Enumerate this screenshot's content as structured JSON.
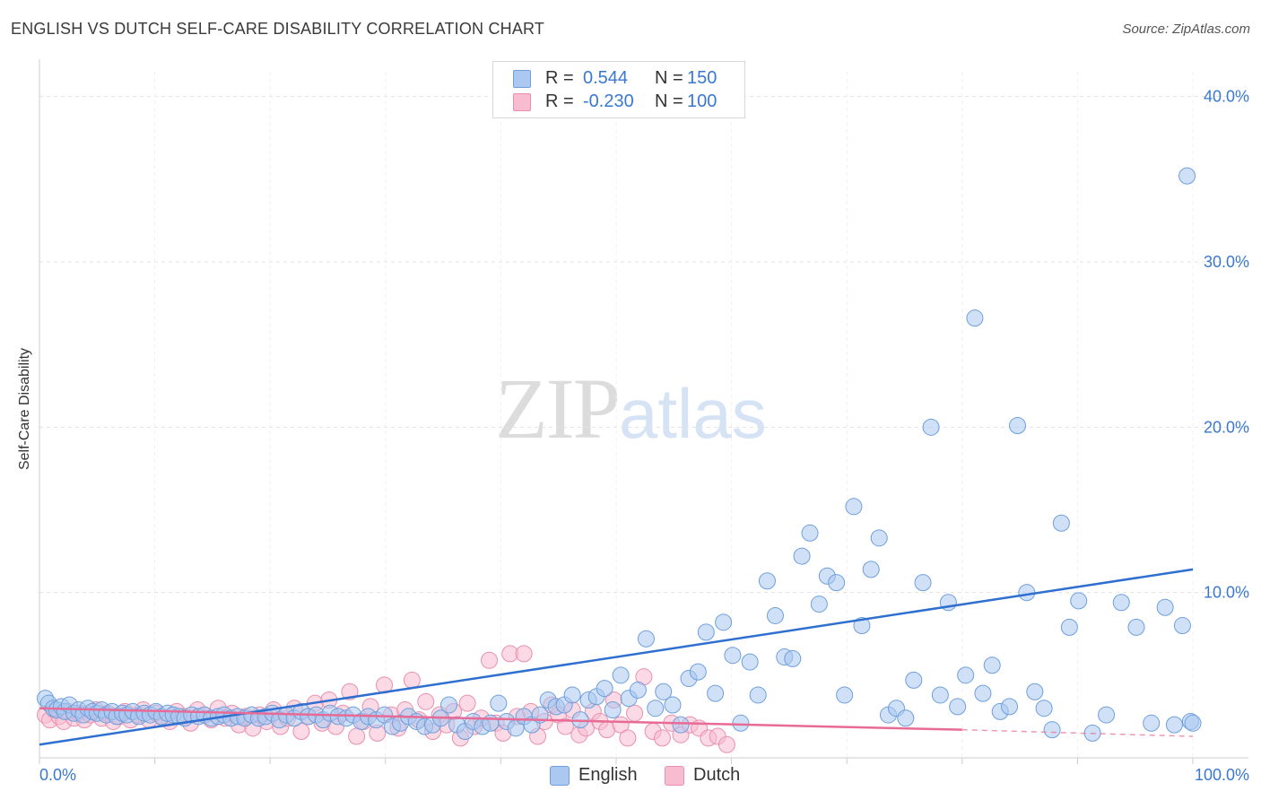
{
  "header": {
    "title": "ENGLISH VS DUTCH SELF-CARE DISABILITY CORRELATION CHART",
    "source": "Source: ZipAtlas.com"
  },
  "watermark": {
    "zip": "ZIP",
    "atlas": "atlas"
  },
  "legend": {
    "r_label": "R =",
    "n_label": "N =",
    "rows": [
      {
        "r": "0.544",
        "n": "150"
      },
      {
        "r": "-0.230",
        "n": "100"
      }
    ]
  },
  "bottom_legend": [
    "English",
    "Dutch"
  ],
  "colors": {
    "english_fill": "#aac8f0",
    "english_stroke": "#6f9fdc",
    "english_line": "#2f6fd0",
    "dutch_fill": "#f7bcd0",
    "dutch_stroke": "#ea8fad",
    "dutch_line": "#e86b95",
    "tick_label": "#3a78d0",
    "grid": "#e3e3e3"
  },
  "chart_data": {
    "type": "scatter",
    "title": "ENGLISH VS DUTCH SELF-CARE DISABILITY CORRELATION CHART",
    "xlabel": "",
    "ylabel": "Self-Care Disability",
    "xlim": [
      0,
      100
    ],
    "ylim": [
      0,
      41.5
    ],
    "x_tick_labels": [
      "0.0%",
      "100.0%"
    ],
    "y_ticks": [
      10,
      20,
      30,
      40
    ],
    "y_tick_labels": [
      "10.0%",
      "20.0%",
      "30.0%",
      "40.0%"
    ],
    "grid": true,
    "legend_position": "top-center",
    "series": [
      {
        "name": "English",
        "r": 0.544,
        "n": 150,
        "trend": {
          "x": [
            0,
            100
          ],
          "y": [
            0.8,
            11.4
          ]
        },
        "points": [
          [
            0.5,
            3.6
          ],
          [
            0.8,
            3.3
          ],
          [
            1.2,
            3.0
          ],
          [
            1.5,
            2.9
          ],
          [
            1.9,
            3.1
          ],
          [
            2.2,
            2.8
          ],
          [
            2.6,
            3.2
          ],
          [
            3.0,
            2.7
          ],
          [
            3.4,
            2.9
          ],
          [
            3.8,
            2.6
          ],
          [
            4.2,
            3.0
          ],
          [
            4.6,
            2.8
          ],
          [
            5.0,
            2.7
          ],
          [
            5.4,
            2.9
          ],
          [
            5.8,
            2.6
          ],
          [
            6.3,
            2.8
          ],
          [
            6.7,
            2.5
          ],
          [
            7.2,
            2.7
          ],
          [
            7.6,
            2.6
          ],
          [
            8.1,
            2.8
          ],
          [
            8.6,
            2.5
          ],
          [
            9.1,
            2.7
          ],
          [
            9.6,
            2.6
          ],
          [
            10.1,
            2.8
          ],
          [
            10.6,
            2.5
          ],
          [
            11.1,
            2.7
          ],
          [
            11.6,
            2.6
          ],
          [
            12.1,
            2.5
          ],
          [
            12.6,
            2.4
          ],
          [
            13.2,
            2.6
          ],
          [
            13.8,
            2.5
          ],
          [
            14.3,
            2.6
          ],
          [
            14.9,
            2.4
          ],
          [
            15.5,
            2.5
          ],
          [
            16.0,
            2.6
          ],
          [
            16.6,
            2.4
          ],
          [
            17.2,
            2.5
          ],
          [
            17.8,
            2.4
          ],
          [
            18.4,
            2.6
          ],
          [
            19.0,
            2.4
          ],
          [
            19.6,
            2.5
          ],
          [
            20.2,
            2.7
          ],
          [
            20.8,
            2.3
          ],
          [
            21.4,
            2.6
          ],
          [
            22.1,
            2.4
          ],
          [
            22.7,
            2.8
          ],
          [
            23.3,
            2.5
          ],
          [
            24.0,
            2.6
          ],
          [
            24.6,
            2.3
          ],
          [
            25.2,
            2.7
          ],
          [
            25.9,
            2.5
          ],
          [
            26.6,
            2.4
          ],
          [
            27.2,
            2.6
          ],
          [
            27.9,
            2.2
          ],
          [
            28.5,
            2.5
          ],
          [
            29.2,
            2.3
          ],
          [
            29.9,
            2.6
          ],
          [
            30.6,
            1.9
          ],
          [
            31.3,
            2.1
          ],
          [
            32.0,
            2.5
          ],
          [
            32.7,
            2.2
          ],
          [
            33.4,
            1.9
          ],
          [
            34.1,
            2.0
          ],
          [
            34.8,
            2.4
          ],
          [
            35.5,
            3.2
          ],
          [
            36.2,
            2.0
          ],
          [
            36.9,
            1.6
          ],
          [
            37.6,
            2.2
          ],
          [
            38.4,
            1.9
          ],
          [
            39.1,
            2.1
          ],
          [
            39.8,
            3.3
          ],
          [
            40.5,
            2.2
          ],
          [
            41.3,
            1.8
          ],
          [
            42.0,
            2.5
          ],
          [
            42.7,
            2.0
          ],
          [
            43.4,
            2.6
          ],
          [
            44.1,
            3.5
          ],
          [
            44.8,
            3.1
          ],
          [
            45.5,
            3.2
          ],
          [
            46.2,
            3.8
          ],
          [
            46.9,
            2.3
          ],
          [
            47.6,
            3.5
          ],
          [
            48.3,
            3.7
          ],
          [
            49.0,
            4.2
          ],
          [
            49.7,
            2.9
          ],
          [
            50.4,
            5.0
          ],
          [
            51.1,
            3.6
          ],
          [
            51.9,
            4.1
          ],
          [
            52.6,
            7.2
          ],
          [
            53.4,
            3.0
          ],
          [
            54.1,
            4.0
          ],
          [
            54.9,
            3.2
          ],
          [
            55.6,
            2.0
          ],
          [
            56.3,
            4.8
          ],
          [
            57.1,
            5.2
          ],
          [
            57.8,
            7.6
          ],
          [
            58.6,
            3.9
          ],
          [
            59.3,
            8.2
          ],
          [
            60.1,
            6.2
          ],
          [
            60.8,
            2.1
          ],
          [
            61.6,
            5.8
          ],
          [
            62.3,
            3.8
          ],
          [
            63.1,
            10.7
          ],
          [
            63.8,
            8.6
          ],
          [
            64.6,
            6.1
          ],
          [
            65.3,
            6.0
          ],
          [
            66.1,
            12.2
          ],
          [
            66.8,
            13.6
          ],
          [
            67.6,
            9.3
          ],
          [
            68.3,
            11.0
          ],
          [
            69.1,
            10.6
          ],
          [
            69.8,
            3.8
          ],
          [
            70.6,
            15.2
          ],
          [
            71.3,
            8.0
          ],
          [
            72.1,
            11.4
          ],
          [
            72.8,
            13.3
          ],
          [
            73.6,
            2.6
          ],
          [
            74.3,
            3.0
          ],
          [
            75.1,
            2.4
          ],
          [
            75.8,
            4.7
          ],
          [
            76.6,
            10.6
          ],
          [
            77.3,
            20.0
          ],
          [
            78.1,
            3.8
          ],
          [
            78.8,
            9.4
          ],
          [
            79.6,
            3.1
          ],
          [
            80.3,
            5.0
          ],
          [
            81.1,
            26.6
          ],
          [
            81.8,
            3.9
          ],
          [
            82.6,
            5.6
          ],
          [
            83.3,
            2.8
          ],
          [
            84.1,
            3.1
          ],
          [
            84.8,
            20.1
          ],
          [
            85.6,
            10.0
          ],
          [
            86.3,
            4.0
          ],
          [
            87.1,
            3.0
          ],
          [
            87.8,
            1.7
          ],
          [
            88.6,
            14.2
          ],
          [
            89.3,
            7.9
          ],
          [
            90.1,
            9.5
          ],
          [
            91.3,
            1.5
          ],
          [
            92.5,
            2.6
          ],
          [
            93.8,
            9.4
          ],
          [
            95.1,
            7.9
          ],
          [
            96.4,
            2.1
          ],
          [
            97.6,
            9.1
          ],
          [
            98.4,
            2.0
          ],
          [
            99.1,
            8.0
          ],
          [
            99.5,
            35.2
          ],
          [
            99.8,
            2.2
          ],
          [
            100.0,
            2.1
          ]
        ]
      },
      {
        "name": "Dutch",
        "r": -0.23,
        "n": 100,
        "trend": {
          "x": [
            0,
            80
          ],
          "y": [
            3.0,
            1.7
          ]
        },
        "trend_extension": {
          "x": [
            80,
            100
          ],
          "y": [
            1.7,
            1.3
          ]
        },
        "points": [
          [
            0.5,
            2.6
          ],
          [
            0.9,
            2.3
          ],
          [
            1.3,
            2.9
          ],
          [
            1.7,
            2.5
          ],
          [
            2.1,
            2.2
          ],
          [
            2.5,
            2.8
          ],
          [
            3.0,
            2.4
          ],
          [
            3.4,
            2.7
          ],
          [
            3.9,
            2.3
          ],
          [
            4.4,
            2.6
          ],
          [
            4.9,
            2.9
          ],
          [
            5.4,
            2.4
          ],
          [
            5.9,
            2.7
          ],
          [
            6.4,
            2.2
          ],
          [
            6.9,
            2.5
          ],
          [
            7.4,
            2.8
          ],
          [
            7.9,
            2.3
          ],
          [
            8.5,
            2.6
          ],
          [
            9.0,
            2.9
          ],
          [
            9.5,
            2.3
          ],
          [
            10.1,
            2.7
          ],
          [
            10.7,
            2.4
          ],
          [
            11.3,
            2.2
          ],
          [
            11.9,
            2.8
          ],
          [
            12.5,
            2.5
          ],
          [
            13.1,
            2.1
          ],
          [
            13.7,
            2.9
          ],
          [
            14.3,
            2.6
          ],
          [
            14.9,
            2.3
          ],
          [
            15.5,
            3.0
          ],
          [
            16.1,
            2.4
          ],
          [
            16.7,
            2.7
          ],
          [
            17.3,
            2.0
          ],
          [
            17.9,
            2.5
          ],
          [
            18.5,
            1.8
          ],
          [
            19.1,
            2.6
          ],
          [
            19.7,
            2.2
          ],
          [
            20.3,
            2.9
          ],
          [
            20.9,
            1.9
          ],
          [
            21.5,
            2.4
          ],
          [
            22.1,
            3.0
          ],
          [
            22.7,
            1.6
          ],
          [
            23.3,
            2.5
          ],
          [
            23.9,
            3.3
          ],
          [
            24.5,
            2.1
          ],
          [
            25.1,
            3.5
          ],
          [
            25.7,
            1.9
          ],
          [
            26.3,
            2.7
          ],
          [
            26.9,
            4.0
          ],
          [
            27.5,
            1.3
          ],
          [
            28.1,
            2.2
          ],
          [
            28.7,
            3.1
          ],
          [
            29.3,
            1.5
          ],
          [
            29.9,
            4.4
          ],
          [
            30.5,
            2.6
          ],
          [
            31.1,
            1.8
          ],
          [
            31.7,
            2.9
          ],
          [
            32.3,
            4.7
          ],
          [
            32.9,
            2.3
          ],
          [
            33.5,
            3.4
          ],
          [
            34.1,
            1.6
          ],
          [
            34.7,
            2.6
          ],
          [
            35.3,
            2.0
          ],
          [
            35.9,
            2.8
          ],
          [
            36.5,
            1.2
          ],
          [
            37.1,
            3.3
          ],
          [
            37.7,
            1.9
          ],
          [
            38.3,
            2.4
          ],
          [
            39.0,
            5.9
          ],
          [
            39.6,
            2.1
          ],
          [
            40.2,
            1.5
          ],
          [
            40.8,
            6.3
          ],
          [
            41.4,
            2.5
          ],
          [
            42.0,
            6.3
          ],
          [
            42.6,
            2.8
          ],
          [
            43.2,
            1.3
          ],
          [
            43.8,
            2.2
          ],
          [
            44.4,
            3.2
          ],
          [
            45.0,
            2.6
          ],
          [
            45.6,
            1.9
          ],
          [
            46.2,
            2.9
          ],
          [
            46.8,
            1.4
          ],
          [
            47.4,
            1.8
          ],
          [
            48.0,
            2.8
          ],
          [
            48.6,
            2.2
          ],
          [
            49.2,
            1.7
          ],
          [
            49.8,
            3.5
          ],
          [
            50.4,
            2.0
          ],
          [
            51.0,
            1.2
          ],
          [
            51.6,
            2.7
          ],
          [
            52.4,
            4.9
          ],
          [
            53.2,
            1.6
          ],
          [
            54.0,
            1.2
          ],
          [
            54.8,
            2.1
          ],
          [
            55.6,
            1.4
          ],
          [
            56.4,
            2.0
          ],
          [
            57.2,
            1.8
          ],
          [
            58.0,
            1.2
          ],
          [
            58.8,
            1.3
          ],
          [
            59.6,
            0.8
          ]
        ]
      }
    ]
  }
}
